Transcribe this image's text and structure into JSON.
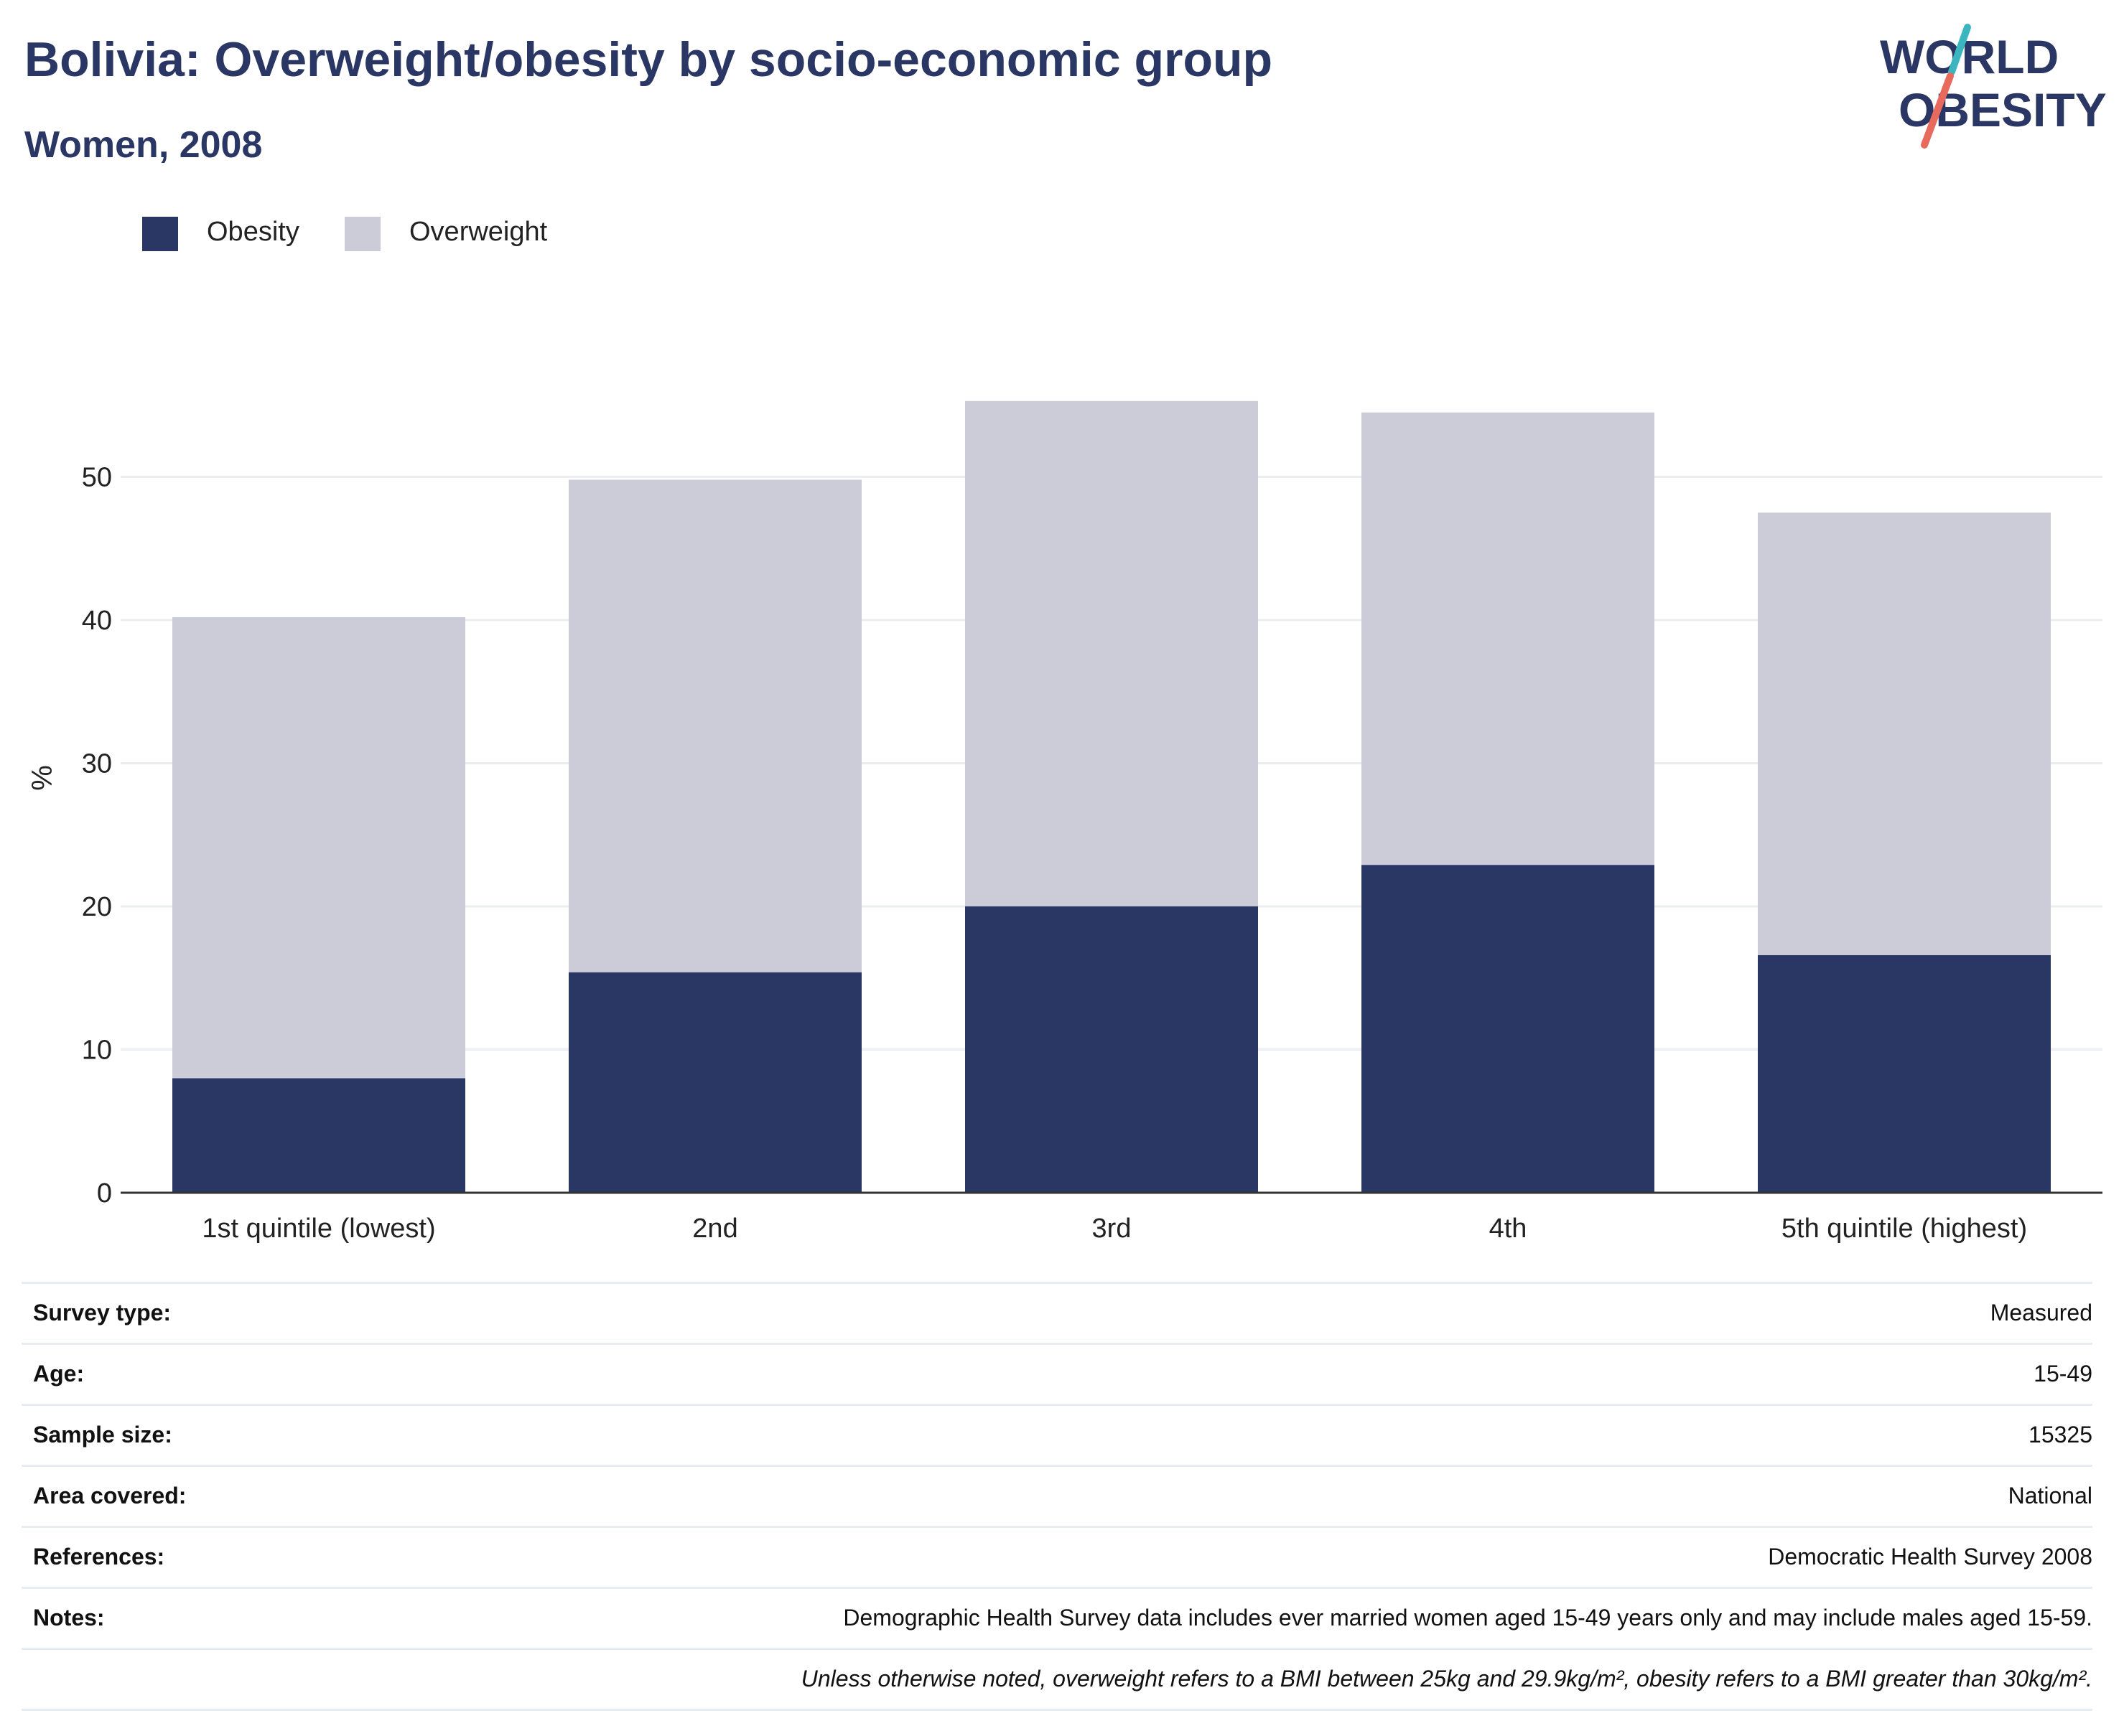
{
  "header": {
    "title": "Bolivia: Overweight/obesity by socio-economic group",
    "subtitle": "Women, 2008"
  },
  "logo": {
    "line1": "WORLD",
    "line2": "OBESITY"
  },
  "colors": {
    "obesity": "#2a3663",
    "overweight": "#cbccd8",
    "title": "#2a3663",
    "logo_teal": "#3bb6c0",
    "logo_coral": "#e86a5c"
  },
  "chart_data": {
    "type": "bar",
    "stacked": true,
    "categories": [
      "1st quintile (lowest)",
      "2nd",
      "3rd",
      "4th",
      "5th quintile (highest)"
    ],
    "series": [
      {
        "name": "Obesity",
        "values": [
          8.0,
          15.4,
          20.0,
          22.9,
          16.6
        ]
      },
      {
        "name": "Overweight",
        "values": [
          32.2,
          34.4,
          35.3,
          31.6,
          30.9
        ]
      }
    ],
    "ylabel": "%",
    "ylim": [
      0,
      57
    ],
    "yticks": [
      0,
      10,
      20,
      30,
      40,
      50
    ],
    "grid": true,
    "legend": "top-left"
  },
  "info": [
    {
      "label": "Survey type:",
      "value": "Measured"
    },
    {
      "label": "Age:",
      "value": "15-49"
    },
    {
      "label": "Sample size:",
      "value": "15325"
    },
    {
      "label": "Area covered:",
      "value": "National"
    },
    {
      "label": "References:",
      "value": "Democratic Health Survey 2008"
    },
    {
      "label": "Notes:",
      "value": "Demographic Health Survey data includes ever married women aged 15-49 years only and may include males aged 15-59."
    },
    {
      "label": "",
      "value": "Unless otherwise noted, overweight refers to a BMI between 25kg and 29.9kg/m², obesity refers to a BMI greater than 30kg/m²."
    }
  ]
}
